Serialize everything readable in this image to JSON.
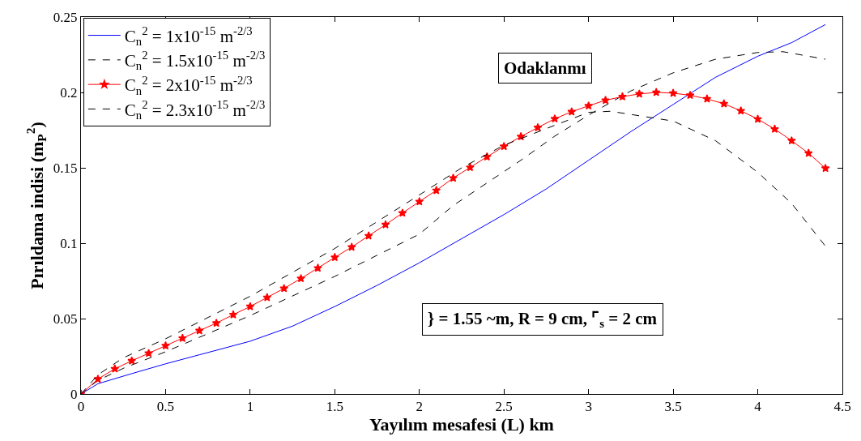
{
  "chart_data": {
    "type": "line",
    "xlabel": "Yayılım mesafesi (L) km",
    "ylabel": "Pırıldama indisi (m$_{P}$$^{2}$)",
    "xlim": [
      0,
      4.5
    ],
    "xticks": [
      0,
      0.5,
      1,
      1.5,
      2,
      2.5,
      3,
      3.5,
      4,
      4.5
    ],
    "ylim": [
      0,
      0.25
    ],
    "yticks": [
      0,
      0.05,
      0.1,
      0.15,
      0.2,
      0.25
    ],
    "grid": false,
    "legend": "top left",
    "annotations": [
      "Odaklanmı",
      "} = 1.55 ~m, R = 9 cm, ⌜$_{s}$ = 2 cm"
    ],
    "series": [
      {
        "name": "C$_{n}$$^{2}$ = 1x10$^{-15}$ m$^{-2/3}$",
        "color": "#0000ff",
        "line_style": "solid",
        "marker": "none",
        "x": [
          0,
          0.1,
          0.3,
          0.5,
          0.7,
          1,
          1.25,
          1.5,
          1.75,
          2,
          2.25,
          2.5,
          2.75,
          3,
          3.25,
          3.5,
          3.75,
          4,
          4.2,
          4.4
        ],
        "values": [
          0,
          0.0068,
          0.0135,
          0.02,
          0.026,
          0.035,
          0.045,
          0.058,
          0.072,
          0.087,
          0.103,
          0.119,
          0.136,
          0.155,
          0.174,
          0.192,
          0.21,
          0.224,
          0.233,
          0.245
        ]
      },
      {
        "name": "C$_{n}$$^{2}$ = 1.5x10$^{-15}$ m$^{-2/3}$",
        "color": "#000000",
        "line_style": "dashed",
        "marker": "none",
        "x": [
          0,
          0.1,
          0.25,
          0.5,
          0.75,
          1,
          1.25,
          1.5,
          1.75,
          2,
          2.2,
          2.4,
          2.6,
          2.8,
          3,
          3.25,
          3.5,
          3.75,
          4,
          4.15,
          4.4
        ],
        "values": [
          0,
          0.009,
          0.017,
          0.028,
          0.04,
          0.052,
          0.065,
          0.078,
          0.092,
          0.106,
          0.125,
          0.14,
          0.155,
          0.171,
          0.185,
          0.201,
          0.213,
          0.222,
          0.2265,
          0.227,
          0.222
        ]
      },
      {
        "name": "C$_{n}$$^{2}$ = 2x10$^{-15}$ m$^{-2/3}$",
        "color": "#ff0000",
        "line_style": "solid",
        "marker": "star",
        "x": [
          0,
          0.1,
          0.2,
          0.3,
          0.4,
          0.5,
          0.6,
          0.7,
          0.8,
          0.9,
          1,
          1.1,
          1.2,
          1.3,
          1.4,
          1.5,
          1.6,
          1.7,
          1.8,
          1.9,
          2,
          2.1,
          2.2,
          2.3,
          2.4,
          2.5,
          2.6,
          2.7,
          2.8,
          2.9,
          3,
          3.1,
          3.2,
          3.3,
          3.4,
          3.5,
          3.6,
          3.7,
          3.8,
          3.9,
          4,
          4.1,
          4.2,
          4.3,
          4.4
        ],
        "values": [
          0,
          0.0099,
          0.0167,
          0.022,
          0.027,
          0.032,
          0.037,
          0.042,
          0.047,
          0.0526,
          0.058,
          0.064,
          0.07,
          0.0766,
          0.0835,
          0.0906,
          0.0974,
          0.1049,
          0.1123,
          0.12,
          0.1276,
          0.135,
          0.1432,
          0.1503,
          0.1573,
          0.1642,
          0.1707,
          0.1767,
          0.1825,
          0.1872,
          0.1911,
          0.1948,
          0.1972,
          0.199,
          0.2,
          0.1995,
          0.1981,
          0.1957,
          0.1925,
          0.1878,
          0.1823,
          0.1757,
          0.168,
          0.1597,
          0.1497
        ]
      },
      {
        "name": "C$_{n}$$^{2}$ = 2.3x10$^{-15}$ m$^{-2/3}$",
        "color": "#000000",
        "line_style": "dashed",
        "marker": "none",
        "x": [
          0,
          0.1,
          0.25,
          0.5,
          1,
          1.5,
          2,
          2.25,
          2.5,
          2.75,
          3,
          3.13,
          3.5,
          3.75,
          4,
          4.2,
          4.4
        ],
        "values": [
          0,
          0.0127,
          0.024,
          0.0366,
          0.0648,
          0.0965,
          0.132,
          0.15,
          0.165,
          0.176,
          0.1868,
          0.1875,
          0.181,
          0.168,
          0.147,
          0.1264,
          0.098
        ]
      }
    ]
  }
}
